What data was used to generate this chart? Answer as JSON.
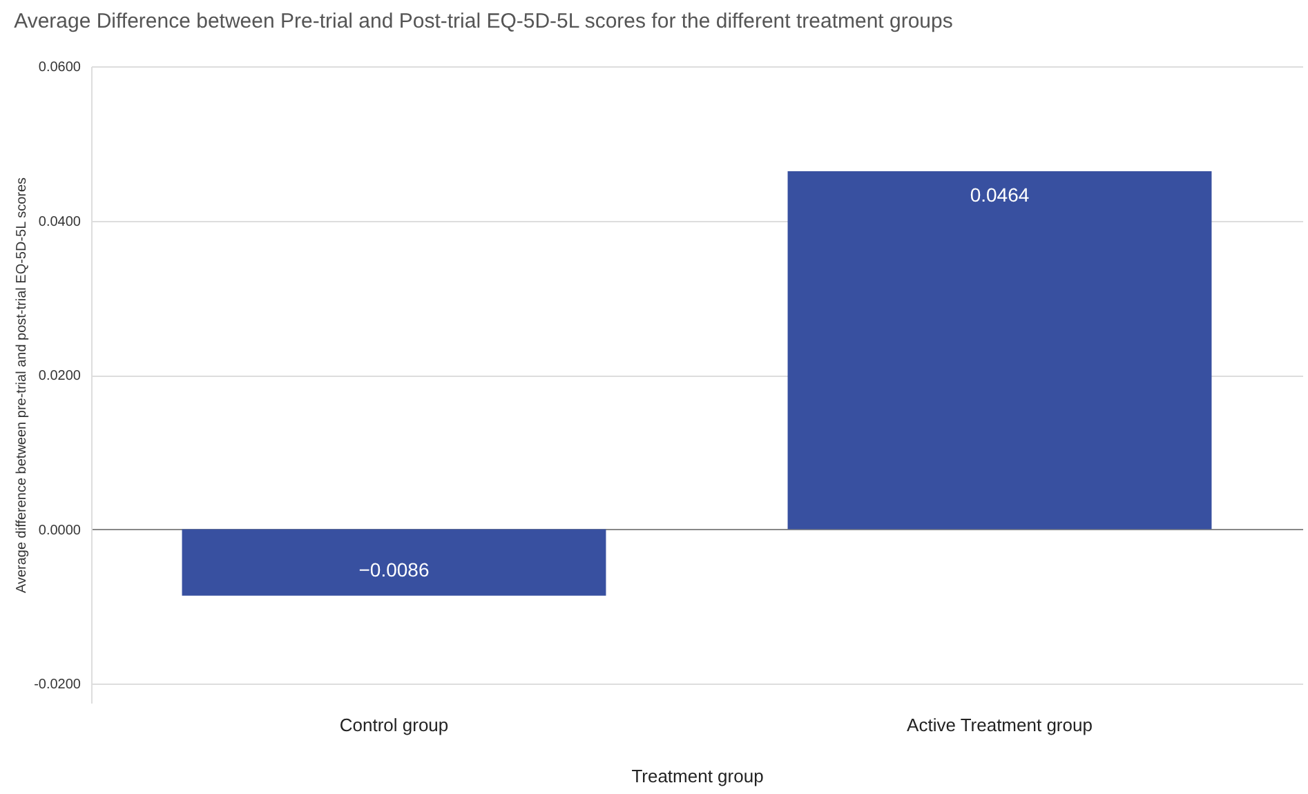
{
  "chart_data": {
    "type": "bar",
    "title": "Average Difference between Pre-trial and Post-trial EQ-5D-5L scores for the different treatment groups",
    "xlabel": "Treatment group",
    "ylabel": "Average difference between pre-trial and post-trial EQ-5D-5L scores",
    "categories": [
      "Control group",
      "Active Treatment group"
    ],
    "values": [
      -0.0086,
      0.0464
    ],
    "color": "#3850a0",
    "ylim": [
      -0.0225,
      0.06
    ],
    "yticks": [
      {
        "value": -0.02,
        "label": "-0.0200"
      },
      {
        "value": 0,
        "label": "0.0000"
      },
      {
        "value": 0.02,
        "label": "0.0200"
      },
      {
        "value": 0.04,
        "label": "0.0400"
      },
      {
        "value": 0.06,
        "label": "0.0600"
      }
    ],
    "grid": "y",
    "data_labels": true
  }
}
